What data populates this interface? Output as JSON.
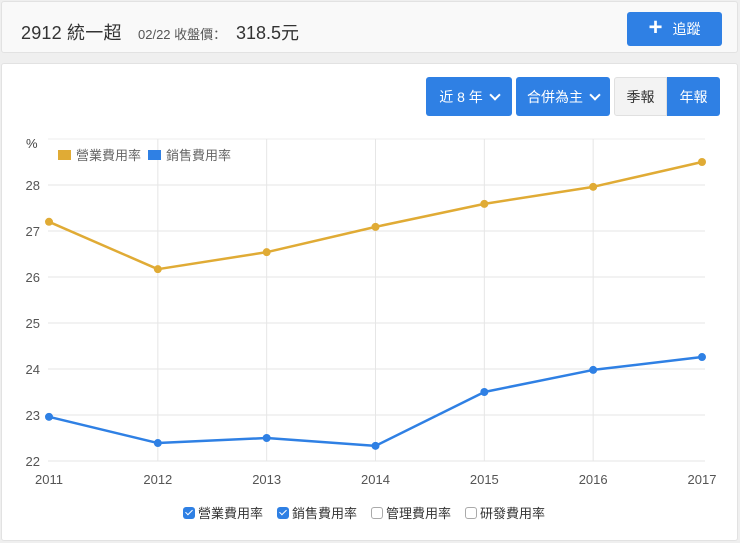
{
  "header": {
    "stock": "2912 統一超",
    "date_label": "02/22 收盤價：",
    "price": "318.5元",
    "track_button": {
      "icon": "plus-icon",
      "label": "追蹤"
    }
  },
  "controls": {
    "range": "近 8 年",
    "basis": "合併為主",
    "quarterly": "季報",
    "annual": "年報",
    "active_period": "年報"
  },
  "colors": {
    "operating": "#e0ab35",
    "selling": "#2f80e4",
    "accent": "#2f80e4"
  },
  "toggles": [
    {
      "label": "營業費用率",
      "checked": true
    },
    {
      "label": "銷售費用率",
      "checked": true
    },
    {
      "label": "管理費用率",
      "checked": false
    },
    {
      "label": "研發費用率",
      "checked": false
    }
  ],
  "chart_data": {
    "type": "line",
    "title": "",
    "xlabel": "",
    "ylabel": "%",
    "categories": [
      "2011",
      "2012",
      "2013",
      "2014",
      "2015",
      "2016",
      "2017"
    ],
    "series": [
      {
        "name": "營業費用率",
        "color": "#e0ab35",
        "values": [
          27.2,
          26.17,
          26.54,
          27.09,
          27.59,
          27.96,
          28.5
        ]
      },
      {
        "name": "銷售費用率",
        "color": "#2f80e4",
        "values": [
          22.96,
          22.39,
          22.5,
          22.33,
          23.5,
          23.98,
          24.26
        ]
      }
    ],
    "yticks": [
      22,
      23,
      24,
      25,
      26,
      27,
      28
    ],
    "ylim": [
      22,
      28.5
    ],
    "grid": true,
    "legend_position": "top-left"
  }
}
